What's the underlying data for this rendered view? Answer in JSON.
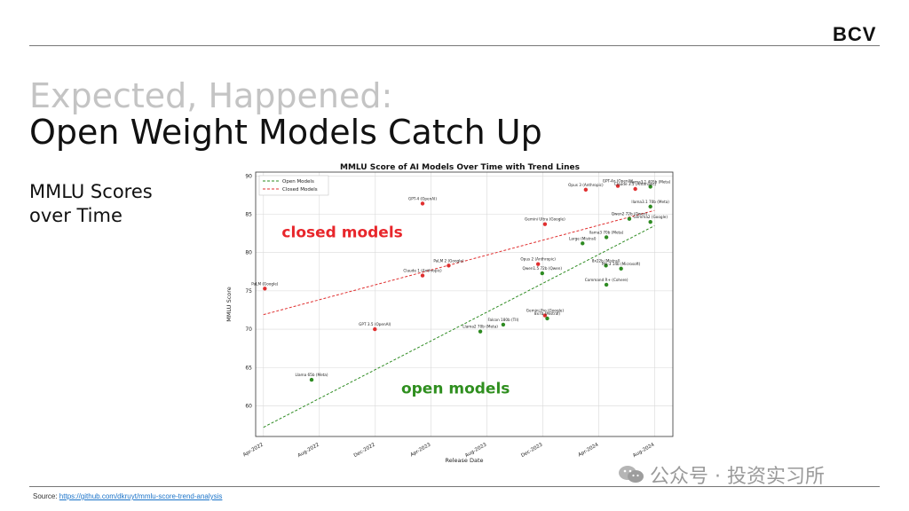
{
  "header": {
    "brand": "BCV"
  },
  "slide": {
    "title_line1": "Expected, Happened:",
    "title_line2": "Open Weight Models Catch Up",
    "sidebar_line1": "MMLU Scores",
    "sidebar_line2": "over Time",
    "source_label": "Source: ",
    "source_link": "https://github.com/dkruyt/mmlu-score-trend-analysis",
    "watermark": "公众号 · 投资实习所"
  },
  "colors": {
    "open": "#2e8b22",
    "closed": "#e03030",
    "annotation_closed": "#e8262b",
    "annotation_open": "#2f8f1f"
  },
  "chart_data": {
    "type": "scatter",
    "title": "MMLU Score of AI Models Over Time with Trend Lines",
    "xlabel": "Release Date",
    "ylabel": "MMLU Score",
    "xlim": [
      "2022-03-15",
      "2024-09-10"
    ],
    "ylim": [
      56,
      90.5
    ],
    "yticks": [
      60,
      65,
      70,
      75,
      80,
      85,
      90
    ],
    "xticks": [
      "Apr-2022",
      "Aug-2022",
      "Dec-2022",
      "Apr-2023",
      "Aug-2023",
      "Dec-2023",
      "Apr-2024",
      "Aug-2024"
    ],
    "grid": true,
    "legend_position": "top-left",
    "annotations": [
      {
        "text": "closed models",
        "series": "Closed Models",
        "x": "2022-09-20",
        "y": 82.0
      },
      {
        "text": "open models",
        "series": "Open Models",
        "x": "2023-05-25",
        "y": 61.6
      }
    ],
    "series": [
      {
        "name": "Open Models",
        "style": "dashed",
        "trend": {
          "x": [
            "2022-04-01",
            "2024-08-01"
          ],
          "y": [
            57.2,
            83.5
          ]
        },
        "points": [
          {
            "label": "Llama 65b (Meta)",
            "x": "2022-07-15",
            "y": 63.4
          },
          {
            "label": "Llama2 70b (Meta)",
            "x": "2023-07-18",
            "y": 69.7
          },
          {
            "label": "Falcon 180b (TII)",
            "x": "2023-09-06",
            "y": 70.6
          },
          {
            "label": "Qwen1.5 72b (Qwen)",
            "x": "2023-11-30",
            "y": 77.3
          },
          {
            "label": "8x7b (Mistral)",
            "x": "2023-12-11",
            "y": 71.4
          },
          {
            "label": "Large (Mistral)",
            "x": "2024-02-26",
            "y": 81.2
          },
          {
            "label": "llama3 70b (Meta)",
            "x": "2024-04-18",
            "y": 82.0
          },
          {
            "label": "8x22b (Mistral)",
            "x": "2024-04-17",
            "y": 78.3
          },
          {
            "label": "Command R+ (Cohere)",
            "x": "2024-04-18",
            "y": 75.8
          },
          {
            "label": "Phi-3 14b (Microsoft)",
            "x": "2024-05-20",
            "y": 77.9
          },
          {
            "label": "Qwen2 72b (Qwen)",
            "x": "2024-06-07",
            "y": 84.4
          },
          {
            "label": "llama3.1 70b (Meta)",
            "x": "2024-07-23",
            "y": 86.0
          },
          {
            "label": "llama3.1 405b (Meta)",
            "x": "2024-07-23",
            "y": 88.6
          },
          {
            "label": "Gemma2 (Google)",
            "x": "2024-07-23",
            "y": 84.0
          }
        ]
      },
      {
        "name": "Closed Models",
        "style": "dashed",
        "trend": {
          "x": [
            "2022-04-01",
            "2024-08-01"
          ],
          "y": [
            71.9,
            85.5
          ]
        },
        "points": [
          {
            "label": "PaLM (Google)",
            "x": "2022-04-04",
            "y": 75.3
          },
          {
            "label": "GPT 3.5 (OpenAI)",
            "x": "2022-11-30",
            "y": 70.0
          },
          {
            "label": "GPT-4 (OpenAI)",
            "x": "2023-03-14",
            "y": 86.4
          },
          {
            "label": "Claude 1 (Anthropic)",
            "x": "2023-03-14",
            "y": 77.0
          },
          {
            "label": "PaLM 2 (Google)",
            "x": "2023-05-10",
            "y": 78.3
          },
          {
            "label": "Gemini Ultra (Google)",
            "x": "2023-12-06",
            "y": 83.7
          },
          {
            "label": "Gemini Pro (Google)",
            "x": "2023-12-06",
            "y": 71.8
          },
          {
            "label": "Opus 2 (Anthropic)",
            "x": "2023-11-21",
            "y": 78.5
          },
          {
            "label": "Opus 3 (Anthropic)",
            "x": "2024-03-04",
            "y": 88.2
          },
          {
            "label": "GPT-4o (OpenAI)",
            "x": "2024-05-13",
            "y": 88.7
          },
          {
            "label": "Claude 3.5 (Anthropic)",
            "x": "2024-06-20",
            "y": 88.3
          }
        ]
      }
    ]
  }
}
